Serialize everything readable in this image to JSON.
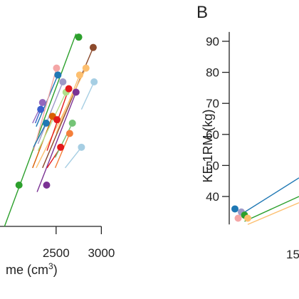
{
  "chart_data": [
    {
      "type": "scatter",
      "panel": "",
      "xlabel": "me (cm3)",
      "xlabel_text": "me (cm",
      "xlabel_superscript": "3",
      "xlabel_suffix": ")",
      "ylabel": "",
      "x_ticks": [
        2500,
        3000
      ],
      "x_tick_labels": [
        "2500",
        "3000"
      ],
      "xlim": [
        1880,
        3060
      ],
      "ylim": [
        28,
        88
      ],
      "grid": false,
      "legend": "none",
      "series": [
        {
          "color": "#2ca02c",
          "points": [
            [
              2090,
              40
            ],
            [
              2750,
              83
            ]
          ],
          "line": [
            [
              1930,
              28
            ],
            [
              2720,
              84
            ]
          ]
        },
        {
          "color": "#8c4a2c",
          "points": [
            [
              2910,
              80
            ]
          ],
          "line": [
            [
              2350,
              45
            ],
            [
              2910,
              80
            ]
          ]
        },
        {
          "color": "#d95f02",
          "points": [
            [
              2460,
              60
            ]
          ],
          "line": [
            [
              2240,
              45
            ],
            [
              2460,
              60
            ]
          ]
        },
        {
          "color": "#fdbf6f",
          "points": [
            [
              2830,
              74
            ]
          ],
          "line": [
            [
              2280,
              45
            ],
            [
              2830,
              74
            ]
          ]
        },
        {
          "color": "#a6cee3",
          "points": [
            [
              2920,
              70
            ]
          ],
          "line": [
            [
              2780,
              62
            ],
            [
              2920,
              70
            ]
          ]
        },
        {
          "color": "#1f78b4",
          "points": [
            [
              2520,
              72
            ]
          ],
          "line": [
            [
              2280,
              57
            ],
            [
              2520,
              72
            ]
          ]
        },
        {
          "color": "#b2df8a",
          "points": [
            [
              2610,
              67
            ]
          ],
          "line": [
            [
              2300,
              50
            ],
            [
              2610,
              67
            ]
          ]
        },
        {
          "color": "#9e9ac8",
          "points": [
            [
              2575,
              70
            ]
          ],
          "line": [
            [
              2300,
              52
            ],
            [
              2575,
              70
            ]
          ]
        },
        {
          "color": "#f4a6a6",
          "points": [
            [
              2505,
              74
            ]
          ],
          "line": [
            [
              2250,
              50
            ],
            [
              2505,
              74
            ]
          ]
        },
        {
          "color": "#e31a1c",
          "points": [
            [
              2640,
              68
            ],
            [
              2510,
              59
            ]
          ],
          "line": [
            [
              2400,
              50
            ],
            [
              2640,
              68
            ]
          ]
        },
        {
          "color": "#fdbf6f",
          "points": [
            [
              2760,
              72
            ]
          ],
          "line": [
            [
              2500,
              55
            ],
            [
              2760,
              72
            ]
          ]
        },
        {
          "color": "#f47f3a",
          "points": [
            [
              2650,
              55
            ]
          ],
          "line": [
            [
              2490,
              45
            ],
            [
              2650,
              55
            ]
          ]
        },
        {
          "color": "#7b3294",
          "points": [
            [
              2720,
              67
            ],
            [
              2395,
              40
            ]
          ],
          "line": [
            [
              2290,
              38
            ],
            [
              2720,
              67
            ]
          ]
        },
        {
          "color": "#e31a1c",
          "points": [
            [
              2550,
              51
            ]
          ],
          "line": [
            [
              2400,
              45
            ],
            [
              2550,
              51
            ]
          ]
        },
        {
          "color": "#74c476",
          "points": [
            [
              2680,
              58
            ]
          ],
          "line": [
            [
              2490,
              48
            ],
            [
              2680,
              58
            ]
          ]
        },
        {
          "color": "#a6cee3",
          "points": [
            [
              2780,
              51
            ]
          ],
          "line": [
            [
              2600,
              45
            ],
            [
              2780,
              51
            ]
          ]
        },
        {
          "color": "#1f78b4",
          "points": [
            [
              2390,
              58
            ]
          ],
          "line": [
            [
              2250,
              51
            ],
            [
              2390,
              58
            ]
          ]
        },
        {
          "color": "#3a5fcd",
          "points": [
            [
              2330,
              62
            ]
          ],
          "line": [
            [
              2270,
              58
            ],
            [
              2330,
              62
            ]
          ]
        },
        {
          "color": "#9467bd",
          "points": [
            [
              2350,
              64
            ]
          ],
          "line": [
            [
              2240,
              58
            ],
            [
              2350,
              64
            ]
          ]
        }
      ]
    },
    {
      "type": "scatter",
      "panel": "B",
      "xlabel": "",
      "ylabel": "KE 1RM (kg)",
      "y_ticks": [
        40,
        50,
        60,
        70,
        80,
        90
      ],
      "y_tick_labels": [
        "40",
        "50",
        "60",
        "70",
        "80",
        "90"
      ],
      "x_tick_labels": [
        "15"
      ],
      "ylim": [
        31,
        95
      ],
      "grid": false,
      "legend": "none",
      "series": [
        {
          "color": "#1f78b4",
          "points": [
            [
              0,
              36
            ]
          ],
          "line": [
            [
              0,
              33
            ],
            [
              20,
              46
            ]
          ]
        },
        {
          "color": "#f4a6a6",
          "points": [
            [
              1,
              33
            ]
          ],
          "line": []
        },
        {
          "color": "#9e9ac8",
          "points": [
            [
              2,
              35
            ]
          ],
          "line": []
        },
        {
          "color": "#2ca02c",
          "points": [
            [
              3,
              34
            ]
          ],
          "line": [
            [
              3,
              32
            ],
            [
              20,
              40
            ]
          ]
        },
        {
          "color": "#fdbf6f",
          "points": [
            [
              4,
              33
            ]
          ],
          "line": [
            [
              4,
              31
            ],
            [
              20,
              38
            ]
          ]
        }
      ]
    }
  ]
}
